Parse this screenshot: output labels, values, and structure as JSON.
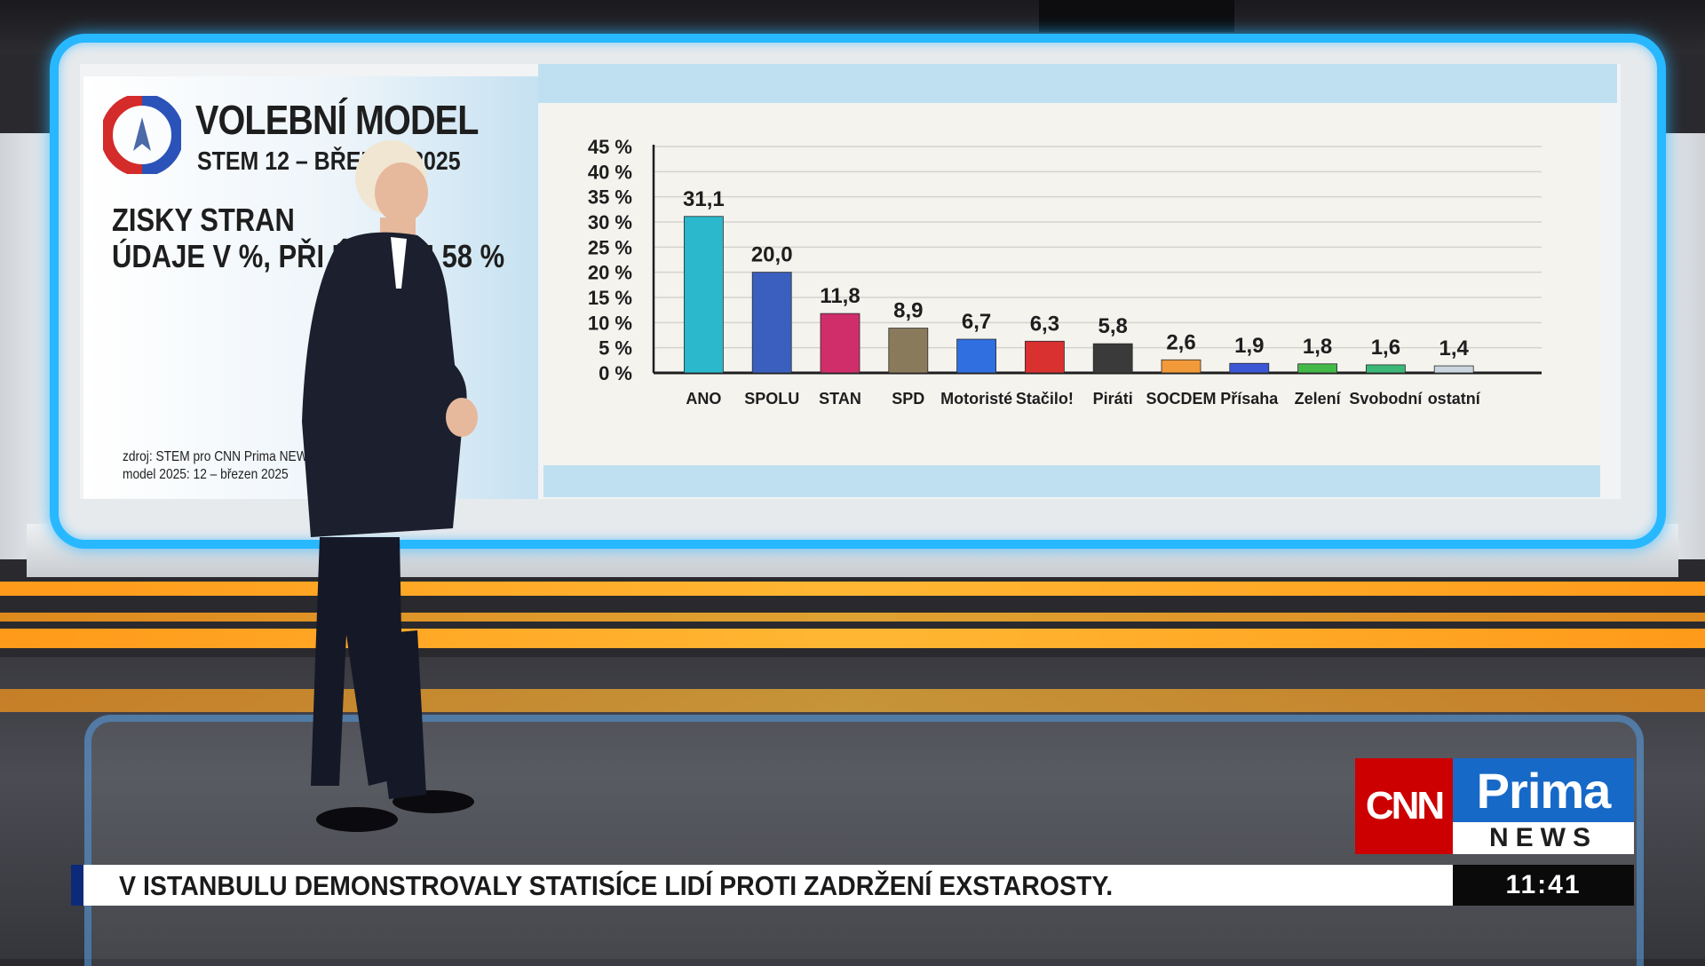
{
  "graphic": {
    "title": "VOLEBNÍ MODEL",
    "subtitle": "STEM 12 – BŘEZEN 2025",
    "heading_line1": "ZISKY STRAN",
    "heading_line2": "ÚDAJE V %, PŘI ÚČASTI 58 %",
    "source_line1": "zdroj: STEM pro CNN Prima NEWS",
    "source_line2": "model 2025: 12 – březen 2025"
  },
  "chart_data": {
    "type": "bar",
    "categories": [
      "ANO",
      "SPOLU",
      "STAN",
      "SPD",
      "Motoristé",
      "Stačilo!",
      "Piráti",
      "SOCDEM",
      "Přísaha",
      "Zelení",
      "Svobodní",
      "ostatní"
    ],
    "values": [
      31.1,
      20.0,
      11.8,
      8.9,
      6.7,
      6.3,
      5.8,
      2.6,
      1.9,
      1.8,
      1.6,
      1.4
    ],
    "value_labels": [
      "31,1",
      "20,0",
      "11,8",
      "8,9",
      "6,7",
      "6,3",
      "5,8",
      "2,6",
      "1,9",
      "1,8",
      "1,6",
      "1,4"
    ],
    "colors": [
      "#2bb8cc",
      "#3a5fbf",
      "#cf2e6a",
      "#8a7a5c",
      "#2f6fe0",
      "#d93030",
      "#3a3a3a",
      "#f29a3a",
      "#3b57d6",
      "#45b84a",
      "#3cb878",
      "#c9d6df"
    ],
    "yticks": [
      0,
      5,
      10,
      15,
      20,
      25,
      30,
      35,
      40,
      45
    ],
    "ytick_labels": [
      "0 %",
      "5 %",
      "10 %",
      "15 %",
      "20 %",
      "25 %",
      "30 %",
      "35 %",
      "40 %",
      "45 %"
    ],
    "ylim": [
      0,
      45
    ],
    "grid": true
  },
  "branding": {
    "cnn": "CNN",
    "prima": "Prima",
    "news": "NEWS"
  },
  "ticker": {
    "headline": "V ISTANBULU DEMONSTROVALY STATISÍCE LIDÍ PROTI ZADRŽENÍ EXSTAROSTY.",
    "time": "11:41"
  }
}
